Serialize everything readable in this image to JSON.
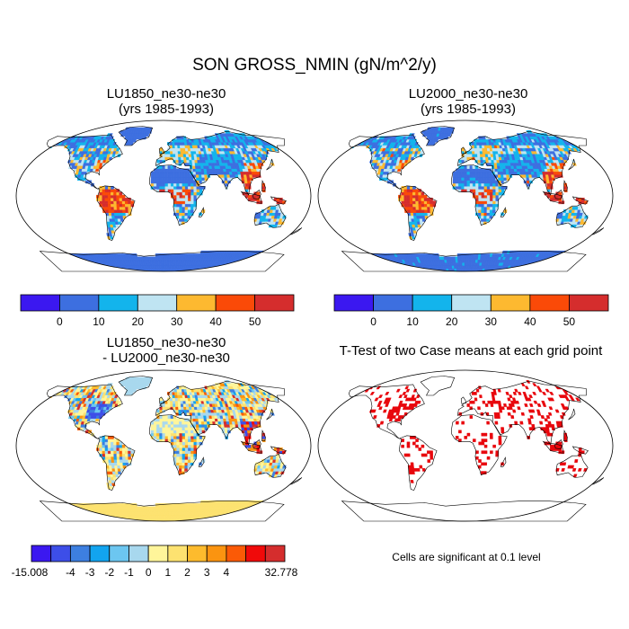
{
  "chart_data": {
    "title": "SON GROSS_NMIN (gN/m^2/y)",
    "panels": [
      {
        "id": "lu1850",
        "type": "heatmap",
        "title_line1": "LU1850_ne30-ne30",
        "title_line2": "(yrs 1985-1993)",
        "projection": "robinson",
        "colorbar": {
          "colors": [
            "#3b18f0",
            "#3d6fe0",
            "#13b4ec",
            "#bfe4f2",
            "#fdb930",
            "#fa4a08",
            "#d52d2d"
          ],
          "tick_labels": [
            "0",
            "10",
            "20",
            "30",
            "40",
            "50"
          ],
          "levels": [
            0,
            10,
            20,
            30,
            40,
            50
          ]
        }
      },
      {
        "id": "lu2000",
        "type": "heatmap",
        "title_line1": "LU2000_ne30-ne30",
        "title_line2": "(yrs 1985-1993)",
        "projection": "robinson",
        "colorbar": {
          "colors": [
            "#3b18f0",
            "#3d6fe0",
            "#13b4ec",
            "#bfe4f2",
            "#fdb930",
            "#fa4a08",
            "#d52d2d"
          ],
          "tick_labels": [
            "0",
            "10",
            "20",
            "30",
            "40",
            "50"
          ],
          "levels": [
            0,
            10,
            20,
            30,
            40,
            50
          ]
        }
      },
      {
        "id": "diff",
        "type": "heatmap",
        "title_line1": "LU1850_ne30-ne30",
        "title_line2": "- LU2000_ne30-ne30",
        "projection": "robinson",
        "colorbar": {
          "colors": [
            "#3b18f0",
            "#3d4ee8",
            "#3d7fe0",
            "#12a4ef",
            "#6cc6f0",
            "#a8d8ee",
            "#fff59a",
            "#fde270",
            "#fdbb2d",
            "#fb9410",
            "#fb5a06",
            "#f00a0a",
            "#d52d2d"
          ],
          "tick_labels": [
            "-15.008",
            "-4",
            "-3",
            "-2",
            "-1",
            "0",
            "1",
            "2",
            "3",
            "4",
            "32.778"
          ],
          "levels": [
            -15.008,
            -4,
            -3,
            -2,
            -1,
            0,
            1,
            2,
            3,
            4,
            32.778
          ]
        }
      },
      {
        "id": "ttest",
        "type": "heatmap",
        "title_line1": "T-Test of two Case means at each grid point",
        "title_line2": "",
        "projection": "robinson",
        "note": "Cells are significant at 0.1 level",
        "significance_level": 0.1
      }
    ]
  }
}
